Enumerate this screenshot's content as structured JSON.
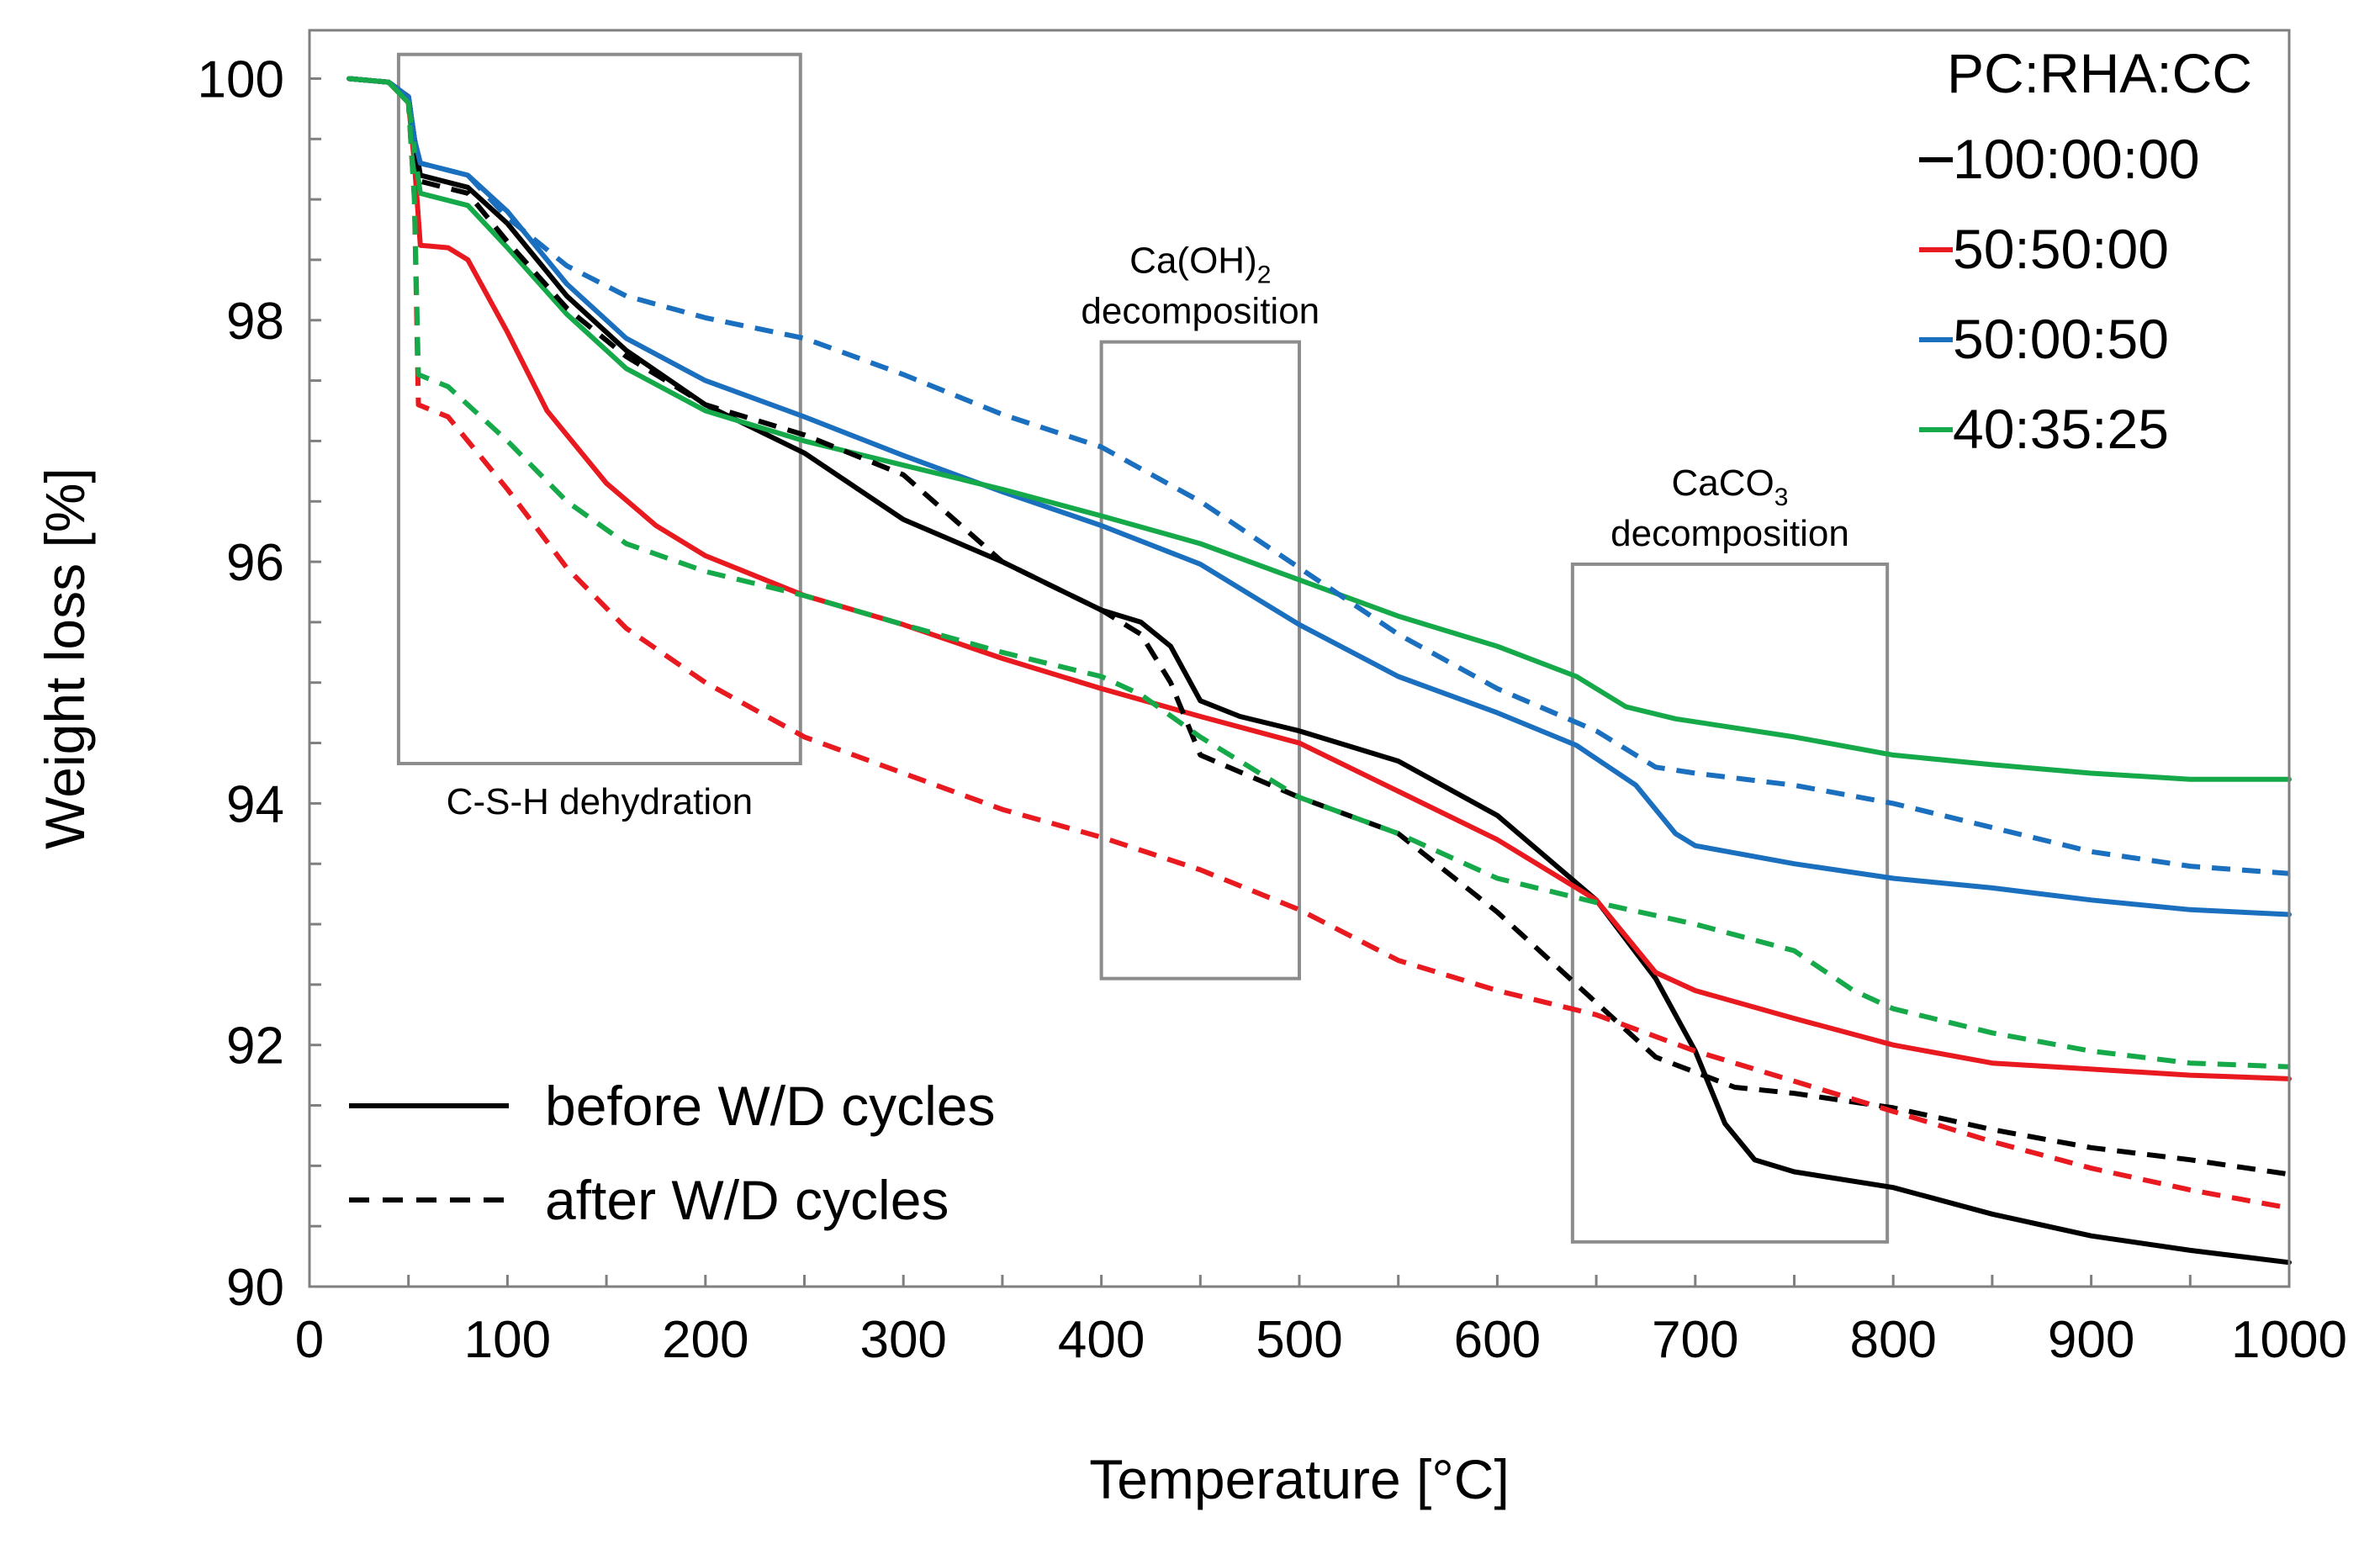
{
  "chart_data": {
    "type": "line",
    "xlabel": "Temperature [°C]",
    "ylabel": "Weight loss [%]",
    "xlim": [
      0,
      1000
    ],
    "ylim": [
      90,
      100.4
    ],
    "xticks": [
      0,
      100,
      200,
      300,
      400,
      500,
      600,
      700,
      800,
      900,
      1000
    ],
    "yticks": [
      90,
      92,
      94,
      96,
      98,
      100
    ],
    "grid": false,
    "legend_title": "PC:RHA:CC",
    "legend_placement": "top-right",
    "style_legend": [
      {
        "label": "before W/D cycles",
        "style": "solid"
      },
      {
        "label": "after W/D cycles",
        "style": "dashed"
      }
    ],
    "regions": [
      {
        "name": "csh",
        "label": "C-S-H dehydration",
        "x0": 45,
        "x1": 248,
        "y0": 94.33,
        "y1": 100.2,
        "label_pos": "bottom"
      },
      {
        "name": "caoh2",
        "label_main": "Ca(OH)",
        "label_sub": "2",
        "label_line2": "decomposition",
        "x0": 400,
        "x1": 500,
        "y0": 92.55,
        "y1": 97.82,
        "label_pos": "top"
      },
      {
        "name": "caco3",
        "label_main": "CaCO",
        "label_sub": "3",
        "label_line2": "decomposition",
        "x0": 638,
        "x1": 797,
        "y0": 90.37,
        "y1": 95.98,
        "label_pos": "top"
      }
    ],
    "series": [
      {
        "name": "100:00:00",
        "condition": "before W/D cycles",
        "color": "#000000",
        "style": "solid",
        "points": [
          [
            20,
            100
          ],
          [
            40,
            99.97
          ],
          [
            50,
            99.85
          ],
          [
            53,
            99.5
          ],
          [
            56,
            99.2
          ],
          [
            80,
            99.1
          ],
          [
            100,
            98.8
          ],
          [
            130,
            98.2
          ],
          [
            160,
            97.75
          ],
          [
            200,
            97.3
          ],
          [
            250,
            96.9
          ],
          [
            300,
            96.35
          ],
          [
            350,
            96.0
          ],
          [
            400,
            95.6
          ],
          [
            420,
            95.5
          ],
          [
            435,
            95.3
          ],
          [
            450,
            94.85
          ],
          [
            470,
            94.72
          ],
          [
            500,
            94.6
          ],
          [
            550,
            94.35
          ],
          [
            600,
            93.9
          ],
          [
            650,
            93.2
          ],
          [
            680,
            92.55
          ],
          [
            700,
            91.95
          ],
          [
            715,
            91.35
          ],
          [
            730,
            91.05
          ],
          [
            750,
            90.95
          ],
          [
            800,
            90.82
          ],
          [
            850,
            90.6
          ],
          [
            900,
            90.42
          ],
          [
            950,
            90.3
          ],
          [
            1000,
            90.2
          ]
        ]
      },
      {
        "name": "50:50:00",
        "condition": "before W/D cycles",
        "color": "#e8191f",
        "style": "solid",
        "points": [
          [
            20,
            100
          ],
          [
            40,
            99.97
          ],
          [
            50,
            99.8
          ],
          [
            53,
            99.3
          ],
          [
            56,
            98.62
          ],
          [
            70,
            98.6
          ],
          [
            80,
            98.5
          ],
          [
            100,
            97.9
          ],
          [
            120,
            97.25
          ],
          [
            150,
            96.65
          ],
          [
            175,
            96.3
          ],
          [
            200,
            96.05
          ],
          [
            250,
            95.72
          ],
          [
            300,
            95.48
          ],
          [
            350,
            95.2
          ],
          [
            400,
            94.95
          ],
          [
            450,
            94.72
          ],
          [
            500,
            94.5
          ],
          [
            550,
            94.1
          ],
          [
            600,
            93.7
          ],
          [
            650,
            93.2
          ],
          [
            680,
            92.6
          ],
          [
            700,
            92.45
          ],
          [
            750,
            92.22
          ],
          [
            800,
            92.0
          ],
          [
            850,
            91.85
          ],
          [
            900,
            91.8
          ],
          [
            950,
            91.75
          ],
          [
            1000,
            91.72
          ]
        ]
      },
      {
        "name": "50:00:50",
        "condition": "before W/D cycles",
        "color": "#1b6fbf",
        "style": "solid",
        "points": [
          [
            20,
            100
          ],
          [
            40,
            99.97
          ],
          [
            50,
            99.85
          ],
          [
            53,
            99.5
          ],
          [
            56,
            99.3
          ],
          [
            80,
            99.2
          ],
          [
            100,
            98.9
          ],
          [
            130,
            98.3
          ],
          [
            160,
            97.85
          ],
          [
            200,
            97.5
          ],
          [
            250,
            97.2
          ],
          [
            300,
            96.88
          ],
          [
            350,
            96.58
          ],
          [
            400,
            96.3
          ],
          [
            450,
            95.98
          ],
          [
            500,
            95.48
          ],
          [
            550,
            95.05
          ],
          [
            600,
            94.75
          ],
          [
            640,
            94.48
          ],
          [
            670,
            94.15
          ],
          [
            690,
            93.75
          ],
          [
            700,
            93.65
          ],
          [
            750,
            93.5
          ],
          [
            800,
            93.38
          ],
          [
            850,
            93.3
          ],
          [
            900,
            93.2
          ],
          [
            950,
            93.12
          ],
          [
            1000,
            93.08
          ]
        ]
      },
      {
        "name": "40:35:25",
        "condition": "before W/D cycles",
        "color": "#16a94a",
        "style": "solid",
        "points": [
          [
            20,
            100
          ],
          [
            40,
            99.97
          ],
          [
            50,
            99.8
          ],
          [
            53,
            99.4
          ],
          [
            56,
            99.05
          ],
          [
            80,
            98.95
          ],
          [
            100,
            98.6
          ],
          [
            130,
            98.05
          ],
          [
            160,
            97.6
          ],
          [
            200,
            97.25
          ],
          [
            250,
            97.0
          ],
          [
            300,
            96.8
          ],
          [
            350,
            96.6
          ],
          [
            400,
            96.38
          ],
          [
            450,
            96.15
          ],
          [
            500,
            95.85
          ],
          [
            550,
            95.55
          ],
          [
            600,
            95.3
          ],
          [
            640,
            95.05
          ],
          [
            665,
            94.8
          ],
          [
            690,
            94.7
          ],
          [
            750,
            94.55
          ],
          [
            800,
            94.4
          ],
          [
            850,
            94.32
          ],
          [
            900,
            94.25
          ],
          [
            950,
            94.2
          ],
          [
            1000,
            94.2
          ]
        ]
      },
      {
        "name": "100:00:00",
        "condition": "after W/D cycles",
        "color": "#000000",
        "style": "dashed",
        "points": [
          [
            20,
            100
          ],
          [
            40,
            99.97
          ],
          [
            50,
            99.85
          ],
          [
            53,
            99.5
          ],
          [
            56,
            99.15
          ],
          [
            80,
            99.05
          ],
          [
            100,
            98.65
          ],
          [
            130,
            98.1
          ],
          [
            160,
            97.7
          ],
          [
            200,
            97.3
          ],
          [
            250,
            97.05
          ],
          [
            300,
            96.72
          ],
          [
            350,
            96.0
          ],
          [
            400,
            95.6
          ],
          [
            420,
            95.4
          ],
          [
            435,
            95.0
          ],
          [
            450,
            94.4
          ],
          [
            500,
            94.05
          ],
          [
            550,
            93.75
          ],
          [
            600,
            93.1
          ],
          [
            650,
            92.35
          ],
          [
            680,
            91.9
          ],
          [
            720,
            91.65
          ],
          [
            750,
            91.6
          ],
          [
            800,
            91.48
          ],
          [
            850,
            91.3
          ],
          [
            900,
            91.15
          ],
          [
            950,
            91.05
          ],
          [
            1000,
            90.93
          ]
        ]
      },
      {
        "name": "50:50:00",
        "condition": "after W/D cycles",
        "color": "#e8191f",
        "style": "dashed",
        "points": [
          [
            20,
            100
          ],
          [
            40,
            99.97
          ],
          [
            50,
            99.8
          ],
          [
            53,
            99.0
          ],
          [
            55,
            97.3
          ],
          [
            70,
            97.2
          ],
          [
            100,
            96.6
          ],
          [
            130,
            95.95
          ],
          [
            160,
            95.45
          ],
          [
            200,
            95.0
          ],
          [
            250,
            94.55
          ],
          [
            300,
            94.25
          ],
          [
            350,
            93.95
          ],
          [
            400,
            93.72
          ],
          [
            450,
            93.45
          ],
          [
            500,
            93.12
          ],
          [
            550,
            92.7
          ],
          [
            600,
            92.45
          ],
          [
            650,
            92.25
          ],
          [
            700,
            91.95
          ],
          [
            750,
            91.7
          ],
          [
            800,
            91.45
          ],
          [
            850,
            91.2
          ],
          [
            900,
            90.98
          ],
          [
            950,
            90.8
          ],
          [
            1000,
            90.65
          ]
        ]
      },
      {
        "name": "50:00:50",
        "condition": "after W/D cycles",
        "color": "#1b6fbf",
        "style": "dashed",
        "points": [
          [
            20,
            100
          ],
          [
            40,
            99.97
          ],
          [
            50,
            99.85
          ],
          [
            53,
            99.5
          ],
          [
            56,
            99.3
          ],
          [
            80,
            99.2
          ],
          [
            100,
            98.85
          ],
          [
            130,
            98.45
          ],
          [
            160,
            98.2
          ],
          [
            200,
            98.02
          ],
          [
            250,
            97.85
          ],
          [
            300,
            97.55
          ],
          [
            350,
            97.22
          ],
          [
            400,
            96.95
          ],
          [
            450,
            96.5
          ],
          [
            500,
            95.95
          ],
          [
            550,
            95.4
          ],
          [
            600,
            94.95
          ],
          [
            650,
            94.6
          ],
          [
            680,
            94.3
          ],
          [
            700,
            94.25
          ],
          [
            750,
            94.15
          ],
          [
            800,
            94.0
          ],
          [
            850,
            93.8
          ],
          [
            900,
            93.6
          ],
          [
            950,
            93.48
          ],
          [
            1000,
            93.42
          ]
        ]
      },
      {
        "name": "40:35:25",
        "condition": "after W/D cycles",
        "color": "#16a94a",
        "style": "dashed",
        "points": [
          [
            20,
            100
          ],
          [
            40,
            99.97
          ],
          [
            50,
            99.8
          ],
          [
            53,
            99.0
          ],
          [
            55,
            97.55
          ],
          [
            70,
            97.45
          ],
          [
            100,
            97.0
          ],
          [
            130,
            96.5
          ],
          [
            160,
            96.15
          ],
          [
            200,
            95.92
          ],
          [
            250,
            95.72
          ],
          [
            300,
            95.48
          ],
          [
            350,
            95.25
          ],
          [
            400,
            95.05
          ],
          [
            420,
            94.9
          ],
          [
            450,
            94.55
          ],
          [
            500,
            94.05
          ],
          [
            550,
            93.75
          ],
          [
            600,
            93.38
          ],
          [
            650,
            93.18
          ],
          [
            700,
            93.0
          ],
          [
            750,
            92.78
          ],
          [
            780,
            92.45
          ],
          [
            800,
            92.3
          ],
          [
            850,
            92.1
          ],
          [
            900,
            91.95
          ],
          [
            950,
            91.85
          ],
          [
            1000,
            91.82
          ]
        ]
      }
    ]
  }
}
